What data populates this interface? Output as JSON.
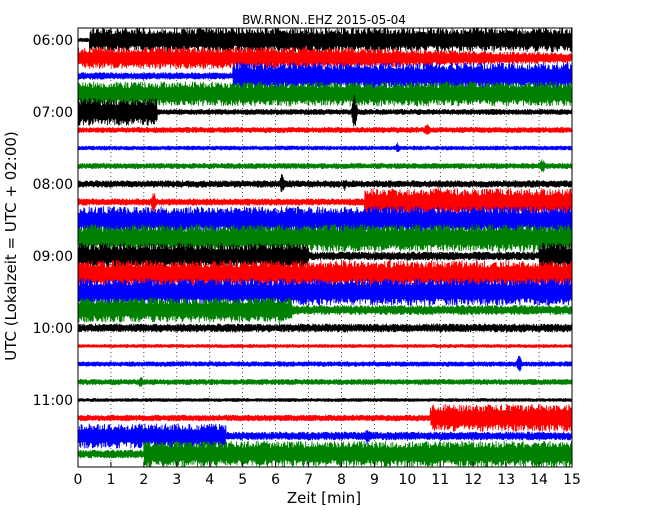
{
  "chart_data": {
    "type": "line",
    "title": "BW.RNON..EHZ 2015-05-04",
    "xlabel": "Zeit  [min]",
    "ylabel": "UTC (Lokalzeit = UTC + 02:00)",
    "xlim": [
      0,
      15
    ],
    "x_ticks": [
      "0",
      "1",
      "2",
      "3",
      "4",
      "5",
      "6",
      "7",
      "8",
      "9",
      "10",
      "11",
      "12",
      "13",
      "14",
      "15"
    ],
    "y_ticks": [
      "06:00",
      "07:00",
      "08:00",
      "09:00",
      "10:00",
      "11:00"
    ],
    "grid": {
      "x": true,
      "y": false,
      "style": "dotted"
    },
    "colors": [
      "#000000",
      "#ff0000",
      "#0000ff",
      "#008000"
    ],
    "traces": [
      {
        "start": "06:00",
        "color": "#000000",
        "level": 0.9,
        "features": [
          {
            "type": "quiet",
            "start": 0,
            "end": 0.35,
            "level": 0.15
          }
        ]
      },
      {
        "start": "06:15",
        "color": "#ff0000",
        "level": 0.8,
        "features": [
          {
            "type": "taper",
            "start": 7.5,
            "end": 15,
            "level": 0.35
          },
          {
            "type": "spike",
            "at": 8.3,
            "level": 1.2
          }
        ]
      },
      {
        "start": "06:30",
        "color": "#0000ff",
        "level": 0.25,
        "features": [
          {
            "type": "burst",
            "start": 4.7,
            "end": 15,
            "level": 1.0
          }
        ]
      },
      {
        "start": "06:45",
        "color": "#008000",
        "level": 0.9,
        "features": []
      },
      {
        "start": "07:00",
        "color": "#000000",
        "level": 0.2,
        "features": [
          {
            "type": "burst",
            "start": 0,
            "end": 2.4,
            "level": 1.0
          },
          {
            "type": "spike",
            "at": 8.4,
            "level": 1.5
          }
        ]
      },
      {
        "start": "07:15",
        "color": "#ff0000",
        "level": 0.2,
        "features": [
          {
            "type": "spike",
            "at": 10.6,
            "level": 0.6
          }
        ]
      },
      {
        "start": "07:30",
        "color": "#0000ff",
        "level": 0.15,
        "features": [
          {
            "type": "spike",
            "at": 9.7,
            "level": 0.4
          }
        ]
      },
      {
        "start": "07:45",
        "color": "#008000",
        "level": 0.2,
        "features": [
          {
            "type": "spike",
            "at": 14.1,
            "level": 0.6
          }
        ]
      },
      {
        "start": "08:00",
        "color": "#000000",
        "level": 0.25,
        "features": [
          {
            "type": "spike",
            "at": 6.2,
            "level": 0.9
          },
          {
            "type": "spike",
            "at": 8.1,
            "level": 0.5
          }
        ]
      },
      {
        "start": "08:15",
        "color": "#ff0000",
        "level": 0.25,
        "features": [
          {
            "type": "burst",
            "start": 8.7,
            "end": 15,
            "level": 1.0
          },
          {
            "type": "spike",
            "at": 2.3,
            "level": 0.9
          }
        ]
      },
      {
        "start": "08:30",
        "color": "#0000ff",
        "level": 1.0,
        "features": []
      },
      {
        "start": "08:45",
        "color": "#008000",
        "level": 1.0,
        "features": []
      },
      {
        "start": "09:00",
        "color": "#000000",
        "level": 0.95,
        "features": [
          {
            "type": "quiet",
            "start": 7.0,
            "end": 14.0,
            "level": 0.3
          },
          {
            "type": "burst",
            "start": 14.0,
            "end": 15,
            "level": 1.0
          }
        ]
      },
      {
        "start": "09:15",
        "color": "#ff0000",
        "level": 1.0,
        "features": []
      },
      {
        "start": "09:30",
        "color": "#0000ff",
        "level": 1.0,
        "features": []
      },
      {
        "start": "09:45",
        "color": "#008000",
        "level": 0.9,
        "features": [
          {
            "type": "quiet",
            "start": 6.5,
            "end": 15,
            "level": 0.35
          },
          {
            "type": "spike",
            "at": 6.1,
            "level": 1.2
          }
        ]
      },
      {
        "start": "10:00",
        "color": "#000000",
        "level": 0.3,
        "features": []
      },
      {
        "start": "10:15",
        "color": "#ff0000",
        "level": 0.12,
        "features": []
      },
      {
        "start": "10:30",
        "color": "#0000ff",
        "level": 0.18,
        "features": [
          {
            "type": "spike",
            "at": 13.4,
            "level": 0.7
          }
        ]
      },
      {
        "start": "10:45",
        "color": "#008000",
        "level": 0.2,
        "features": [
          {
            "type": "spike",
            "at": 1.9,
            "level": 0.5
          }
        ]
      },
      {
        "start": "11:00",
        "color": "#000000",
        "level": 0.12,
        "features": []
      },
      {
        "start": "11:15",
        "color": "#ff0000",
        "level": 0.22,
        "features": [
          {
            "type": "burst",
            "start": 10.7,
            "end": 15,
            "level": 1.0
          }
        ]
      },
      {
        "start": "11:30",
        "color": "#0000ff",
        "level": 0.9,
        "features": [
          {
            "type": "quiet",
            "start": 4.5,
            "end": 15,
            "level": 0.3
          },
          {
            "type": "spike",
            "at": 8.8,
            "level": 0.8
          }
        ]
      },
      {
        "start": "11:45",
        "color": "#008000",
        "level": 0.3,
        "features": [
          {
            "type": "burst",
            "start": 2.0,
            "end": 15,
            "level": 0.95
          }
        ]
      }
    ]
  }
}
